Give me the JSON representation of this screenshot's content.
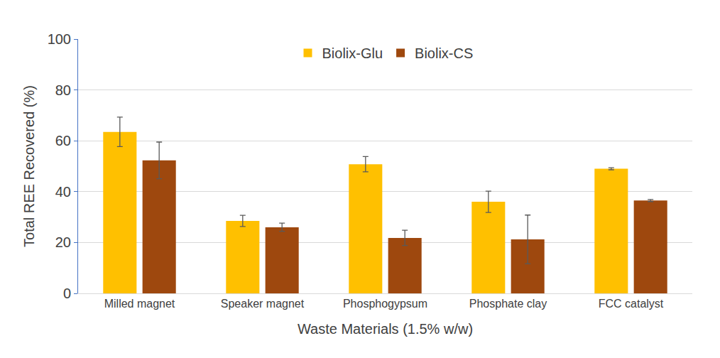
{
  "chart_data": {
    "type": "bar",
    "x_label": "Waste Materials (1.5% w/w)",
    "y_label": "Total REE Recovered (%)",
    "categories": [
      "Milled magnet",
      "Speaker magnet",
      "Phosphogypsum",
      "Phosphate clay",
      "FCC catalyst"
    ],
    "series": [
      {
        "name": "Biolix-Glu",
        "color": "#FFC000",
        "values": [
          63.5,
          28.5,
          50.8,
          36.0,
          49.0
        ],
        "errors": [
          5.8,
          2.2,
          3.0,
          4.2,
          0.4
        ]
      },
      {
        "name": "Biolix-CS",
        "color": "#9E480E",
        "values": [
          52.3,
          26.0,
          21.8,
          21.2,
          36.5
        ],
        "errors": [
          7.2,
          1.6,
          3.0,
          9.6,
          0.4
        ]
      }
    ],
    "ylim": [
      0,
      100
    ],
    "yticks": [
      0,
      20,
      40,
      60,
      80,
      100
    ],
    "grid": true,
    "legend": "top"
  }
}
